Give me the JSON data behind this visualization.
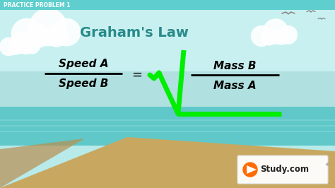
{
  "title": "Graham's Law",
  "header_text": "PRACTICE PROBLEM 1",
  "formula_left_top": "Speed A",
  "formula_left_bottom": "Speed B",
  "formula_right_top": "Mass B",
  "formula_right_bottom": "Mass A",
  "equals_sign": "=",
  "title_color": "#2a8a8a",
  "sqrt_color": "#00ee00",
  "header_bg_color": "#5ecece",
  "header_text_color": "#ffffff",
  "bg_color": "#a8e8e8",
  "sea_color": "#55c8c8",
  "beach_color": "#c8a870",
  "studycom_orange": "#FF6B00",
  "figsize": [
    4.74,
    2.66
  ],
  "dpi": 100
}
